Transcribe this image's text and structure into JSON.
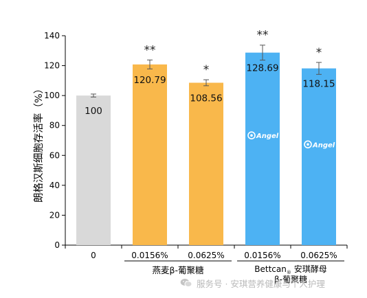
{
  "chart_data": {
    "type": "bar",
    "ylabel": "朗格汉斯细胞存活率（%）",
    "ylim": [
      0,
      140
    ],
    "yticks": [
      0,
      20,
      40,
      60,
      80,
      100,
      120,
      140
    ],
    "categories": [
      "0",
      "0.0156%",
      "0.0625%",
      "0.0156%",
      "0.0625%"
    ],
    "values": [
      100,
      120.79,
      108.56,
      128.69,
      118.15
    ],
    "value_labels": [
      "100",
      "120.79",
      "108.56",
      "128.69",
      "118.15"
    ],
    "errors": [
      1,
      3,
      2,
      5,
      4
    ],
    "significance": [
      "",
      "**",
      "*",
      "**",
      "*"
    ],
    "colors": [
      "#d9d9d9",
      "#f9b84b",
      "#f9b84b",
      "#4db2f3",
      "#4db2f3"
    ],
    "logo_text": [
      "",
      "",
      "",
      "Angel",
      "Angel"
    ],
    "groups": [
      {
        "label": "燕麦β-葡聚糖",
        "from": 1,
        "to": 2
      },
      {
        "label_parts": [
          "Bettcan",
          "®",
          " 安琪酵母",
          "β-葡聚糖"
        ],
        "from": 3,
        "to": 4
      }
    ],
    "grid": false,
    "legend": "none"
  },
  "watermark": {
    "text": "服务号 · 安琪营养健康与个人护理",
    "icon": "wechat-icon"
  }
}
